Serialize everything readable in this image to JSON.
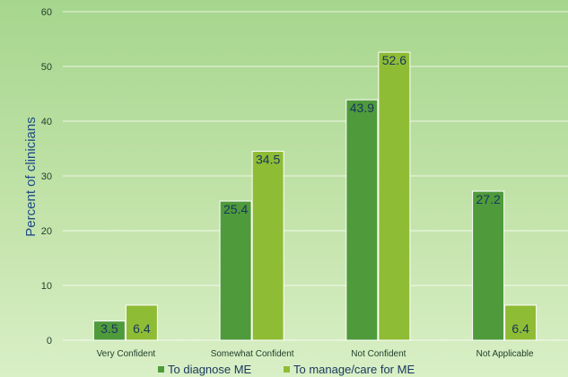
{
  "chart_data": {
    "type": "bar",
    "title": "",
    "xlabel": "",
    "ylabel": "Percent of clinicians",
    "ylim": [
      0,
      60
    ],
    "yticks": [
      0,
      10,
      20,
      30,
      40,
      50,
      60
    ],
    "grid": true,
    "legend_position": "bottom",
    "categories": [
      "Very Confident",
      "Somewhat Confident",
      "Not Confident",
      "Not Applicable"
    ],
    "series": [
      {
        "name": "To diagnose ME",
        "color": "#4f9a3b",
        "values": [
          3.5,
          25.4,
          43.9,
          27.2
        ]
      },
      {
        "name": "To manage/care for ME",
        "color": "#8fbc35",
        "values": [
          6.4,
          34.5,
          52.6,
          6.4
        ]
      }
    ]
  }
}
